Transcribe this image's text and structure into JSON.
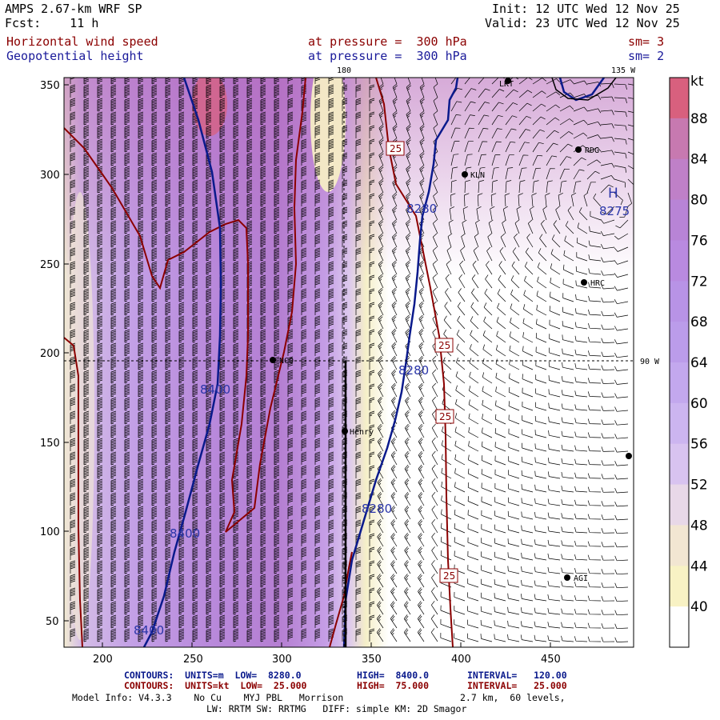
{
  "header": {
    "model_title": "AMPS 2.67-km WRF SP",
    "forecast": "Fcst:    11 h",
    "init": "Init: 12 UTC Wed 12 Nov 25",
    "valid": "Valid: 23 UTC Wed 12 Nov 25",
    "field1_name": "Horizontal wind speed",
    "field1_level": "at pressure =  300 hPa",
    "field1_sm": "sm= 3",
    "field2_name": "Geopotential height",
    "field2_level": "at pressure =  300 hPa",
    "field2_sm": "sm= 2"
  },
  "map": {
    "x_ticks": [
      "200",
      "250",
      "300",
      "350",
      "400",
      "450"
    ],
    "y_ticks": [
      "350",
      "300",
      "250",
      "200",
      "150",
      "100",
      "50"
    ],
    "meridian_180": "180",
    "meridian_135w": "135 W",
    "meridian_90w": "90 W",
    "high_label": "H",
    "high_value": "8275",
    "height_labels": [
      "8280",
      "8280",
      "8280",
      "8400",
      "8400",
      "8400"
    ],
    "speed_labels": [
      "25",
      "25",
      "25",
      "25"
    ],
    "stations": [
      "LKT",
      "RDG",
      "KLN",
      "HRC",
      "NCO",
      "Henry",
      "AGI"
    ],
    "colors": {
      "height_contour": "#0a1a8c",
      "speed_contour": "#8b0000",
      "station": "#000000"
    }
  },
  "colorbar": {
    "unit": "kt",
    "labels": [
      "88",
      "84",
      "80",
      "76",
      "72",
      "68",
      "64",
      "60",
      "56",
      "52",
      "48",
      "44",
      "40"
    ],
    "colors": [
      "#d8607e",
      "#c779b0",
      "#bf80c8",
      "#b884d6",
      "#b98ae0",
      "#b893e6",
      "#bb9cea",
      "#c3a8ee",
      "#ccb5f0",
      "#d8c3f0",
      "#e8d8e8",
      "#f2e6d2",
      "#f8f2c4",
      "#ffffff"
    ]
  },
  "footer": {
    "line1a": "CONTOURS:  UNITS=m  LOW=  8280.0",
    "line1b": "HIGH=  8400.0",
    "line1c": "INTERVAL=   120.00",
    "line2a": "CONTOURS:  UNITS=kt  LOW=  25.000",
    "line2b": "HIGH=  75.000",
    "line2c": "INTERVAL=   25.000",
    "line3": "Model Info: V4.3.3    No Cu    MYJ PBL   Morrison",
    "line3b": "2.7 km,  60 levels,",
    "line4": "LW: RRTM SW: RRTMG   DIFF: simple KM: 2D Smagor"
  }
}
